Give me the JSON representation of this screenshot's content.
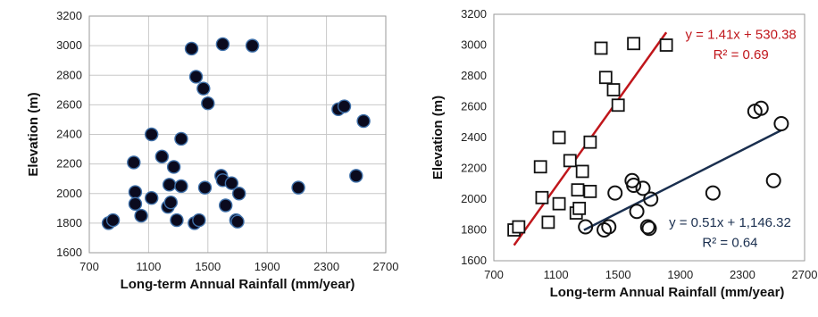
{
  "chart_data": [
    {
      "type": "scatter",
      "xlabel": "Long-term Annual Rainfall  (mm/year)",
      "ylabel": "Elevation (m)",
      "xlim": [
        700,
        2700
      ],
      "ylim": [
        1600,
        3200
      ],
      "xticks": [
        700,
        1100,
        1500,
        1900,
        2300,
        2700
      ],
      "yticks": [
        1600,
        1800,
        2000,
        2200,
        2400,
        2600,
        2800,
        3000,
        3200
      ],
      "grid": true,
      "series": [
        {
          "marker": "filled-circle",
          "color": "#0a0a1e",
          "points": [
            [
              1390,
              2980
            ],
            [
              1600,
              3010
            ],
            [
              1800,
              3000
            ],
            [
              1420,
              2790
            ],
            [
              1470,
              2710
            ],
            [
              1500,
              2610
            ],
            [
              1120,
              2400
            ],
            [
              1320,
              2370
            ],
            [
              2380,
              2570
            ],
            [
              2420,
              2590
            ],
            [
              2550,
              2490
            ],
            [
              1190,
              2250
            ],
            [
              1270,
              2180
            ],
            [
              1000,
              2210
            ],
            [
              1590,
              2120
            ],
            [
              1600,
              2090
            ],
            [
              1660,
              2070
            ],
            [
              1240,
              2060
            ],
            [
              1320,
              2050
            ],
            [
              1480,
              2040
            ],
            [
              1010,
              2010
            ],
            [
              1120,
              1970
            ],
            [
              1620,
              1920
            ],
            [
              1710,
              2000
            ],
            [
              2110,
              2040
            ],
            [
              2500,
              2120
            ],
            [
              1010,
              1930
            ],
            [
              1230,
              1910
            ],
            [
              1250,
              1940
            ],
            [
              1050,
              1850
            ],
            [
              1290,
              1820
            ],
            [
              1410,
              1800
            ],
            [
              1440,
              1820
            ],
            [
              1690,
              1820
            ],
            [
              1700,
              1810
            ],
            [
              830,
              1800
            ],
            [
              860,
              1820
            ]
          ]
        }
      ]
    },
    {
      "type": "scatter",
      "xlabel": "Long-term Annual Rainfall  (mm/year)",
      "ylabel": "Elevation (m)",
      "xlim": [
        700,
        2700
      ],
      "ylim": [
        1600,
        3200
      ],
      "xticks": [
        700,
        1100,
        1500,
        1900,
        2300,
        2700
      ],
      "yticks": [
        1600,
        1800,
        2000,
        2200,
        2400,
        2600,
        2800,
        3000,
        3200
      ],
      "grid": false,
      "series": [
        {
          "marker": "open-square",
          "color": "#111111",
          "points": [
            [
              1390,
              2980
            ],
            [
              1600,
              3010
            ],
            [
              1810,
              3000
            ],
            [
              1420,
              2790
            ],
            [
              1470,
              2710
            ],
            [
              1500,
              2610
            ],
            [
              1120,
              2400
            ],
            [
              1320,
              2370
            ],
            [
              1000,
              2210
            ],
            [
              1190,
              2250
            ],
            [
              1270,
              2180
            ],
            [
              1240,
              2060
            ],
            [
              1320,
              2050
            ],
            [
              1010,
              2010
            ],
            [
              1120,
              1970
            ],
            [
              1230,
              1910
            ],
            [
              1250,
              1940
            ],
            [
              1050,
              1850
            ],
            [
              830,
              1800
            ],
            [
              860,
              1820
            ]
          ],
          "trendline": {
            "slope": 1.41,
            "intercept": 530.38,
            "x_range": [
              830,
              1810
            ],
            "color": "#c0161b"
          }
        },
        {
          "marker": "open-circle",
          "color": "#111111",
          "points": [
            [
              2380,
              2570
            ],
            [
              2420,
              2590
            ],
            [
              2550,
              2490
            ],
            [
              1590,
              2120
            ],
            [
              1600,
              2090
            ],
            [
              1660,
              2070
            ],
            [
              1480,
              2040
            ],
            [
              1620,
              1920
            ],
            [
              1710,
              2000
            ],
            [
              2110,
              2040
            ],
            [
              2500,
              2120
            ],
            [
              1290,
              1820
            ],
            [
              1410,
              1800
            ],
            [
              1440,
              1820
            ],
            [
              1690,
              1820
            ],
            [
              1700,
              1810
            ]
          ],
          "trendline": {
            "slope": 0.51,
            "intercept": 1146.32,
            "x_range": [
              1280,
              2550
            ],
            "color": "#1a2f4f"
          }
        }
      ],
      "annotations": [
        {
          "text": "y = 1.41x + 530.38",
          "color": "#c0161b",
          "x": 2290,
          "y": 3040
        },
        {
          "text": "R² = 0.69",
          "color": "#c0161b",
          "x": 2290,
          "y": 2910
        },
        {
          "text": "y = 0.51x + 1,146.32",
          "color": "#1a2f4f",
          "x": 2220,
          "y": 1820
        },
        {
          "text": "R² = 0.64",
          "color": "#1a2f4f",
          "x": 2220,
          "y": 1690
        }
      ]
    }
  ]
}
